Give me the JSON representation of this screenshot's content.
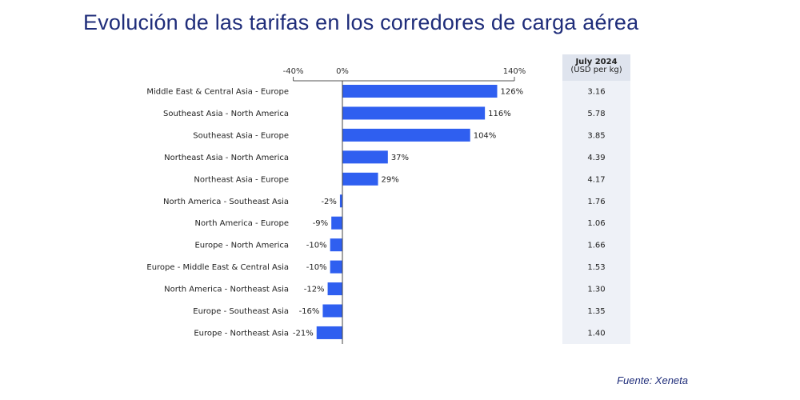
{
  "title": "Evolución de las tarifas en los corredores de carga aérea",
  "source": "Fuente: Xeneta",
  "colors": {
    "bar": "#2f5ff0",
    "title": "#1f2d7a",
    "table_header_bg": "#dfe4ee",
    "table_body_bg": "#eef1f7"
  },
  "chart_data": {
    "type": "bar",
    "orientation": "horizontal",
    "categories": [
      "Middle East & Central Asia - Europe",
      "Southeast Asia - North America",
      "Southeast Asia - Europe",
      "Northeast Asia - North America",
      "Northeast Asia - Europe",
      "North America - Southeast Asia",
      "North America - Europe",
      "Europe - North America",
      "Europe - Middle East & Central Asia",
      "North America - Northeast Asia",
      "Europe - Southeast Asia",
      "Europe - Northeast Asia"
    ],
    "values": [
      126,
      116,
      104,
      37,
      29,
      -2,
      -9,
      -10,
      -10,
      -12,
      -16,
      -21
    ],
    "data_labels": [
      "126%",
      "116%",
      "104%",
      "37%",
      "29%",
      "-2%",
      "-9%",
      "-10%",
      "-10%",
      "-12%",
      "-16%",
      "-21%"
    ],
    "xlim": [
      -40,
      140
    ],
    "x_ticks": [
      "-40%",
      "0%",
      "140%"
    ],
    "x_tick_values": [
      -40,
      0,
      140
    ],
    "axis_position": "top",
    "grid": false,
    "table": {
      "header": "July 2024",
      "subheader": "(USD per kg)",
      "values": [
        "3.16",
        "5.78",
        "3.85",
        "4.39",
        "4.17",
        "1.76",
        "1.06",
        "1.66",
        "1.53",
        "1.30",
        "1.35",
        "1.40"
      ]
    }
  }
}
